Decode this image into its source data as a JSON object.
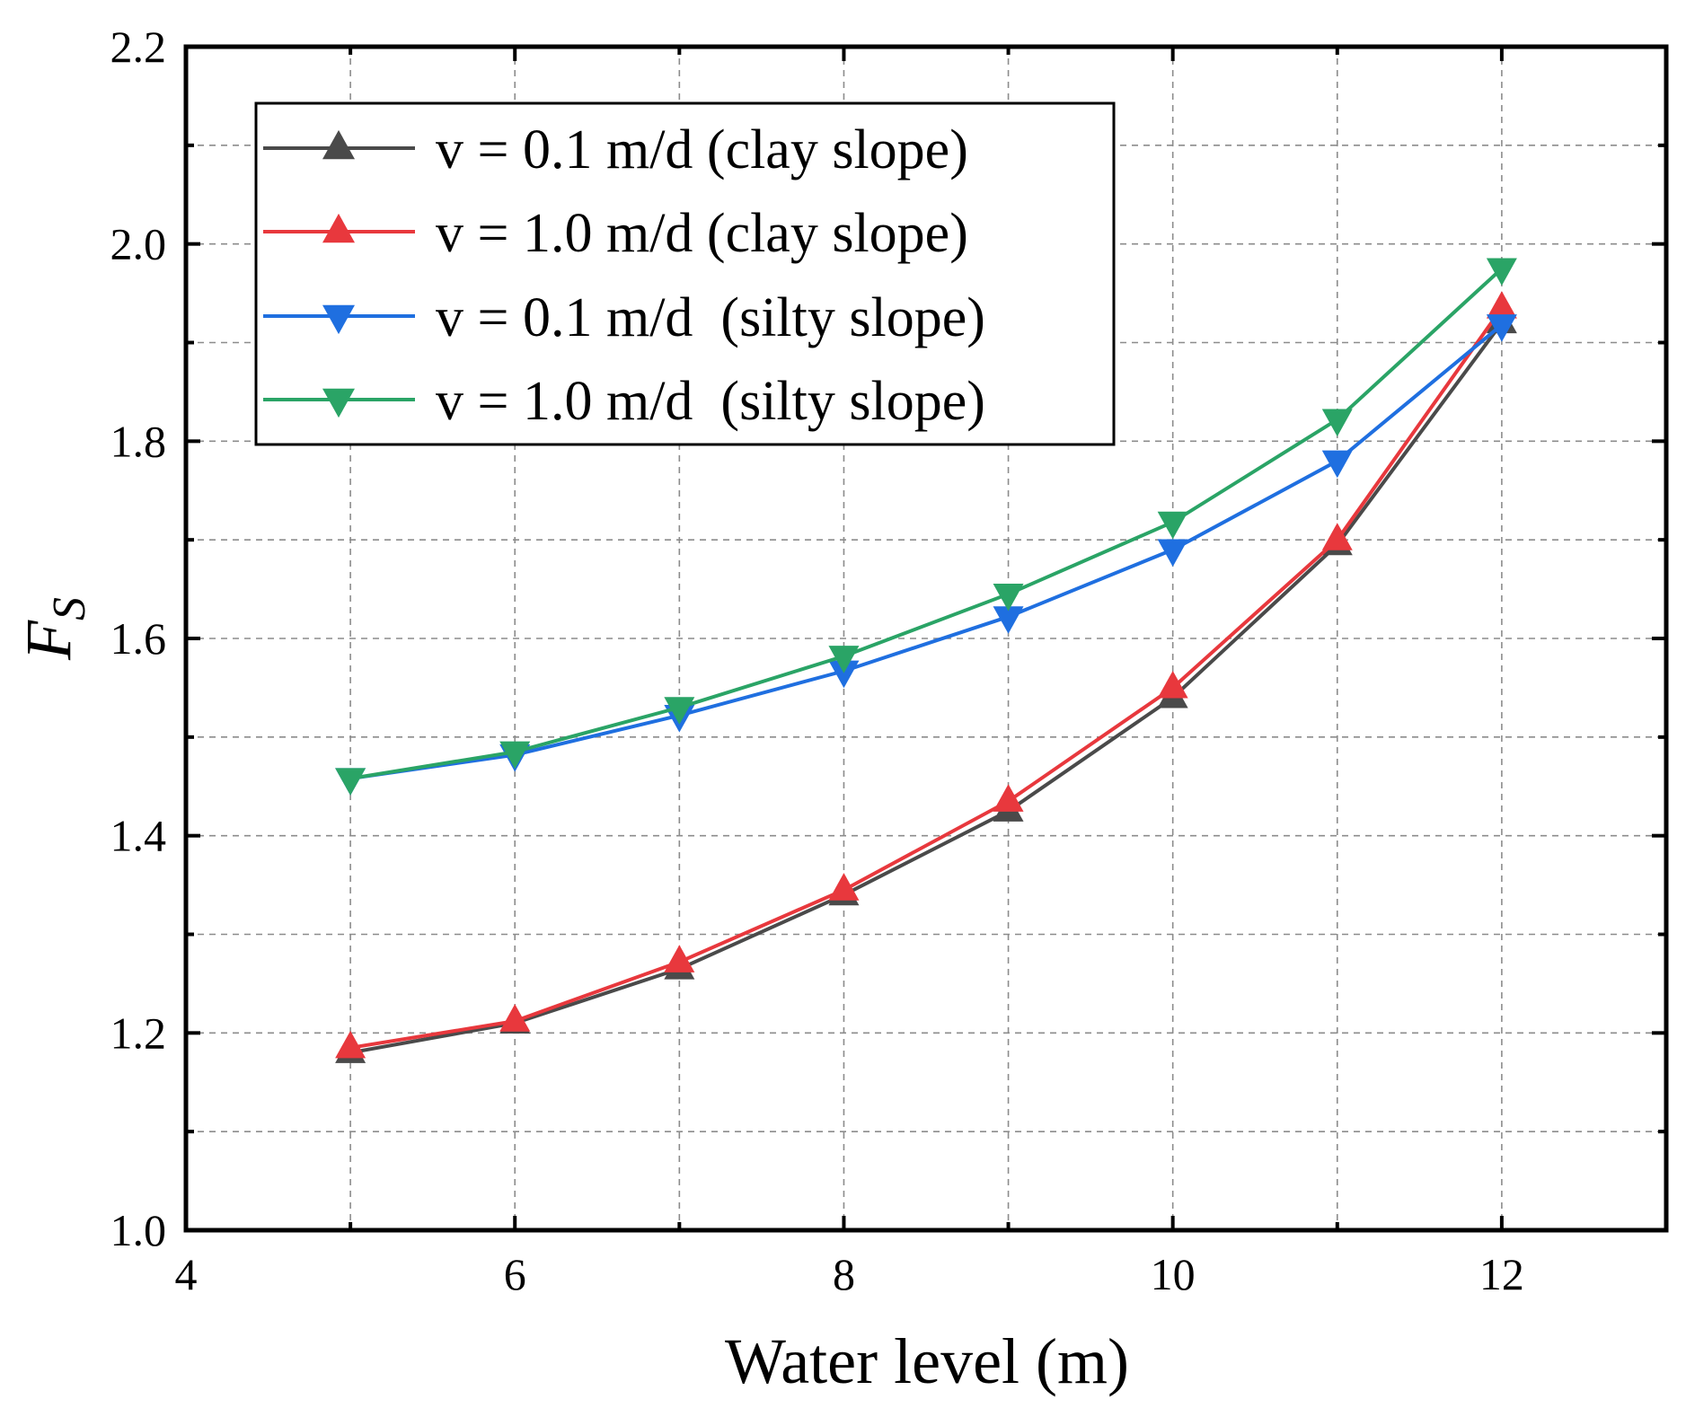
{
  "chart_data": {
    "type": "line",
    "xlabel": "Water level (m)",
    "ylabel_main": "F",
    "ylabel_sub": "S",
    "xlim": [
      4,
      13
    ],
    "ylim": [
      1.0,
      2.2
    ],
    "x_ticks": [
      4,
      6,
      8,
      10,
      12
    ],
    "x_tick_labels": [
      "4",
      "6",
      "8",
      "10",
      "12"
    ],
    "x_minor_ticks": [
      5,
      7,
      9,
      11,
      13
    ],
    "y_ticks": [
      1.0,
      1.2,
      1.4,
      1.6,
      1.8,
      2.0,
      2.2
    ],
    "y_tick_labels": [
      "1.0",
      "1.2",
      "1.4",
      "1.6",
      "1.8",
      "2.0",
      "2.2"
    ],
    "y_minor_ticks": [
      1.1,
      1.3,
      1.5,
      1.7,
      1.9,
      2.1
    ],
    "grid": true,
    "legend_position": "top-left",
    "x": [
      5,
      6,
      7,
      8,
      9,
      10,
      11,
      12
    ],
    "series": [
      {
        "name": "v = 0.1 m/d (clay slope)",
        "color": "#4a4a4a",
        "marker": "triangle-up",
        "values": [
          1.18,
          1.21,
          1.265,
          1.34,
          1.425,
          1.54,
          1.695,
          1.92
        ]
      },
      {
        "name": "v = 1.0 m/d (clay slope)",
        "color": "#e8383d",
        "marker": "triangle-up",
        "values": [
          1.185,
          1.212,
          1.272,
          1.345,
          1.435,
          1.55,
          1.7,
          1.935
        ]
      },
      {
        "name": "v = 0.1 m/d  (silty slope)",
        "color": "#1f6fe0",
        "marker": "triangle-down",
        "values": [
          1.458,
          1.482,
          1.522,
          1.567,
          1.622,
          1.69,
          1.78,
          1.918
        ]
      },
      {
        "name": "v = 1.0 m/d  (silty slope)",
        "color": "#2aa466",
        "marker": "triangle-down",
        "values": [
          1.458,
          1.485,
          1.53,
          1.582,
          1.645,
          1.718,
          1.822,
          1.975
        ]
      }
    ]
  }
}
